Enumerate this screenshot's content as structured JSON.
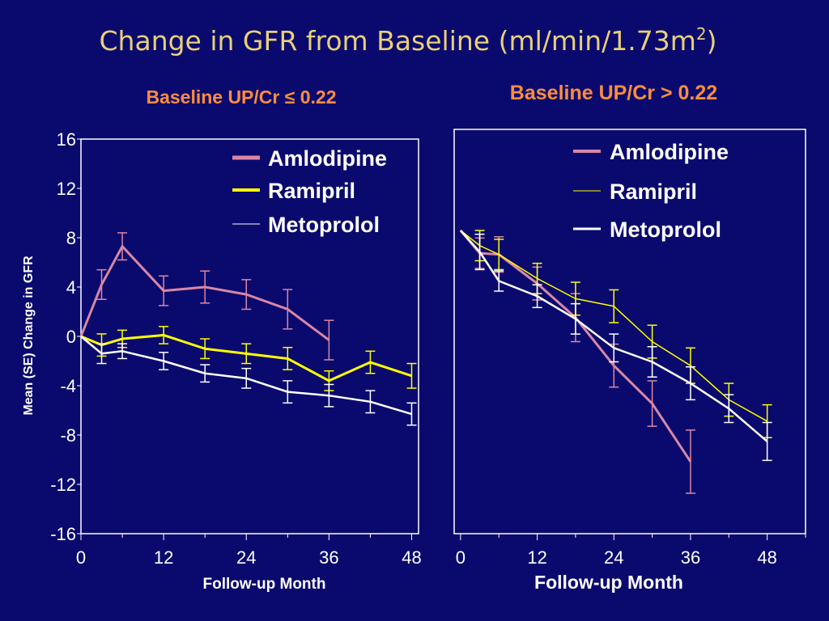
{
  "slide": {
    "title": "Change in GFR from Baseline (ml/min/1.73m",
    "title_sup": "2",
    "title_close": ")",
    "colors": {
      "background": "#0a0a6e",
      "title": "#e8cf7a",
      "subtitle": "#ff8c3c",
      "text": "#ffffff",
      "amlodipine": "#d987a5",
      "ramipril": "#ffff00",
      "metoprolol": "#ffffff"
    }
  },
  "y_axis_label": "Mean (SE) Change in GFR",
  "chart_data": [
    {
      "type": "line",
      "subtitle": "Baseline UP/Cr ≤ 0.22",
      "xlabel": "Follow-up Month",
      "ylabel": "Mean (SE) Change in GFR",
      "xlim": [
        0,
        49
      ],
      "ylim": [
        -16,
        16
      ],
      "x_ticks": [
        0,
        12,
        24,
        36,
        48
      ],
      "y_ticks": [
        16,
        12,
        8,
        4,
        0,
        -4,
        -8,
        -12,
        -16
      ],
      "legend": [
        "Amlodipine",
        "Ramipril",
        "Metoprolol"
      ],
      "series": [
        {
          "name": "Amlodipine",
          "color": "#d987a5",
          "points": [
            {
              "x": 0,
              "y": 0,
              "e": 0
            },
            {
              "x": 3,
              "y": 4.2,
              "e": 1.2
            },
            {
              "x": 6,
              "y": 7.3,
              "e": 1.1
            },
            {
              "x": 12,
              "y": 3.7,
              "e": 1.2
            },
            {
              "x": 18,
              "y": 4.0,
              "e": 1.3
            },
            {
              "x": 24,
              "y": 3.4,
              "e": 1.2
            },
            {
              "x": 30,
              "y": 2.2,
              "e": 1.6
            },
            {
              "x": 36,
              "y": -0.3,
              "e": 1.6
            }
          ]
        },
        {
          "name": "Ramipril",
          "color": "#ffff00",
          "points": [
            {
              "x": 0,
              "y": 0,
              "e": 0
            },
            {
              "x": 3,
              "y": -0.7,
              "e": 0.9
            },
            {
              "x": 6,
              "y": -0.2,
              "e": 0.7
            },
            {
              "x": 12,
              "y": 0.1,
              "e": 0.7
            },
            {
              "x": 18,
              "y": -1.0,
              "e": 0.8
            },
            {
              "x": 24,
              "y": -1.4,
              "e": 0.8
            },
            {
              "x": 30,
              "y": -1.8,
              "e": 0.9
            },
            {
              "x": 36,
              "y": -3.6,
              "e": 0.8
            },
            {
              "x": 42,
              "y": -2.1,
              "e": 0.9
            },
            {
              "x": 48,
              "y": -3.2,
              "e": 1.0
            }
          ]
        },
        {
          "name": "Metoprolol",
          "color": "#ffffff",
          "points": [
            {
              "x": 0,
              "y": 0,
              "e": 0
            },
            {
              "x": 3,
              "y": -1.4,
              "e": 0.8
            },
            {
              "x": 6,
              "y": -1.2,
              "e": 0.6
            },
            {
              "x": 12,
              "y": -2.0,
              "e": 0.7
            },
            {
              "x": 18,
              "y": -3.0,
              "e": 0.7
            },
            {
              "x": 24,
              "y": -3.4,
              "e": 0.8
            },
            {
              "x": 30,
              "y": -4.5,
              "e": 0.9
            },
            {
              "x": 36,
              "y": -4.8,
              "e": 0.9
            },
            {
              "x": 42,
              "y": -5.3,
              "e": 0.9
            },
            {
              "x": 48,
              "y": -6.3,
              "e": 0.9
            }
          ]
        }
      ]
    },
    {
      "type": "line",
      "subtitle": "Baseline UP/Cr > 0.22",
      "xlabel": "Follow-up Month",
      "ylabel": "",
      "xlim": [
        -1,
        54
      ],
      "ylim": [
        -16,
        16
      ],
      "x_ticks": [
        0,
        12,
        24,
        36,
        48
      ],
      "y_ticks": [],
      "legend": [
        "Amlodipine",
        "Ramipril",
        "Metoprolol"
      ],
      "series": [
        {
          "name": "Amlodipine",
          "color": "#d987a5",
          "points": [
            {
              "x": 0,
              "y": 8.0,
              "e": 0
            },
            {
              "x": 3,
              "y": 6.2,
              "e": 1.2
            },
            {
              "x": 6,
              "y": 6.1,
              "e": 1.4
            },
            {
              "x": 12,
              "y": 3.8,
              "e": 1.3
            },
            {
              "x": 18,
              "y": 1.1,
              "e": 1.9
            },
            {
              "x": 24,
              "y": -2.7,
              "e": 1.7
            },
            {
              "x": 30,
              "y": -5.7,
              "e": 1.8
            },
            {
              "x": 36,
              "y": -10.3,
              "e": 2.5
            }
          ]
        },
        {
          "name": "Ramipril",
          "color": "#ffff00",
          "points": [
            {
              "x": 0,
              "y": 8.0,
              "e": 0
            },
            {
              "x": 3,
              "y": 6.8,
              "e": 1.2
            },
            {
              "x": 6,
              "y": 6.1,
              "e": 1.2
            },
            {
              "x": 12,
              "y": 4.2,
              "e": 1.2
            },
            {
              "x": 18,
              "y": 2.6,
              "e": 1.3
            },
            {
              "x": 24,
              "y": 2.0,
              "e": 1.3
            },
            {
              "x": 30,
              "y": -0.8,
              "e": 1.3
            },
            {
              "x": 36,
              "y": -2.7,
              "e": 1.4
            },
            {
              "x": 42,
              "y": -5.4,
              "e": 1.3
            },
            {
              "x": 48,
              "y": -7.1,
              "e": 1.3
            }
          ]
        },
        {
          "name": "Metoprolol",
          "color": "#ffffff",
          "points": [
            {
              "x": 0,
              "y": 8.0,
              "e": 0
            },
            {
              "x": 3,
              "y": 6.3,
              "e": 1.4
            },
            {
              "x": 6,
              "y": 4.0,
              "e": 0.8
            },
            {
              "x": 12,
              "y": 2.8,
              "e": 0.9
            },
            {
              "x": 18,
              "y": 1.0,
              "e": 1.2
            },
            {
              "x": 24,
              "y": -1.3,
              "e": 1.1
            },
            {
              "x": 30,
              "y": -2.4,
              "e": 1.2
            },
            {
              "x": 36,
              "y": -4.1,
              "e": 1.3
            },
            {
              "x": 42,
              "y": -6.1,
              "e": 1.1
            },
            {
              "x": 48,
              "y": -8.7,
              "e": 1.5
            }
          ]
        }
      ]
    }
  ]
}
